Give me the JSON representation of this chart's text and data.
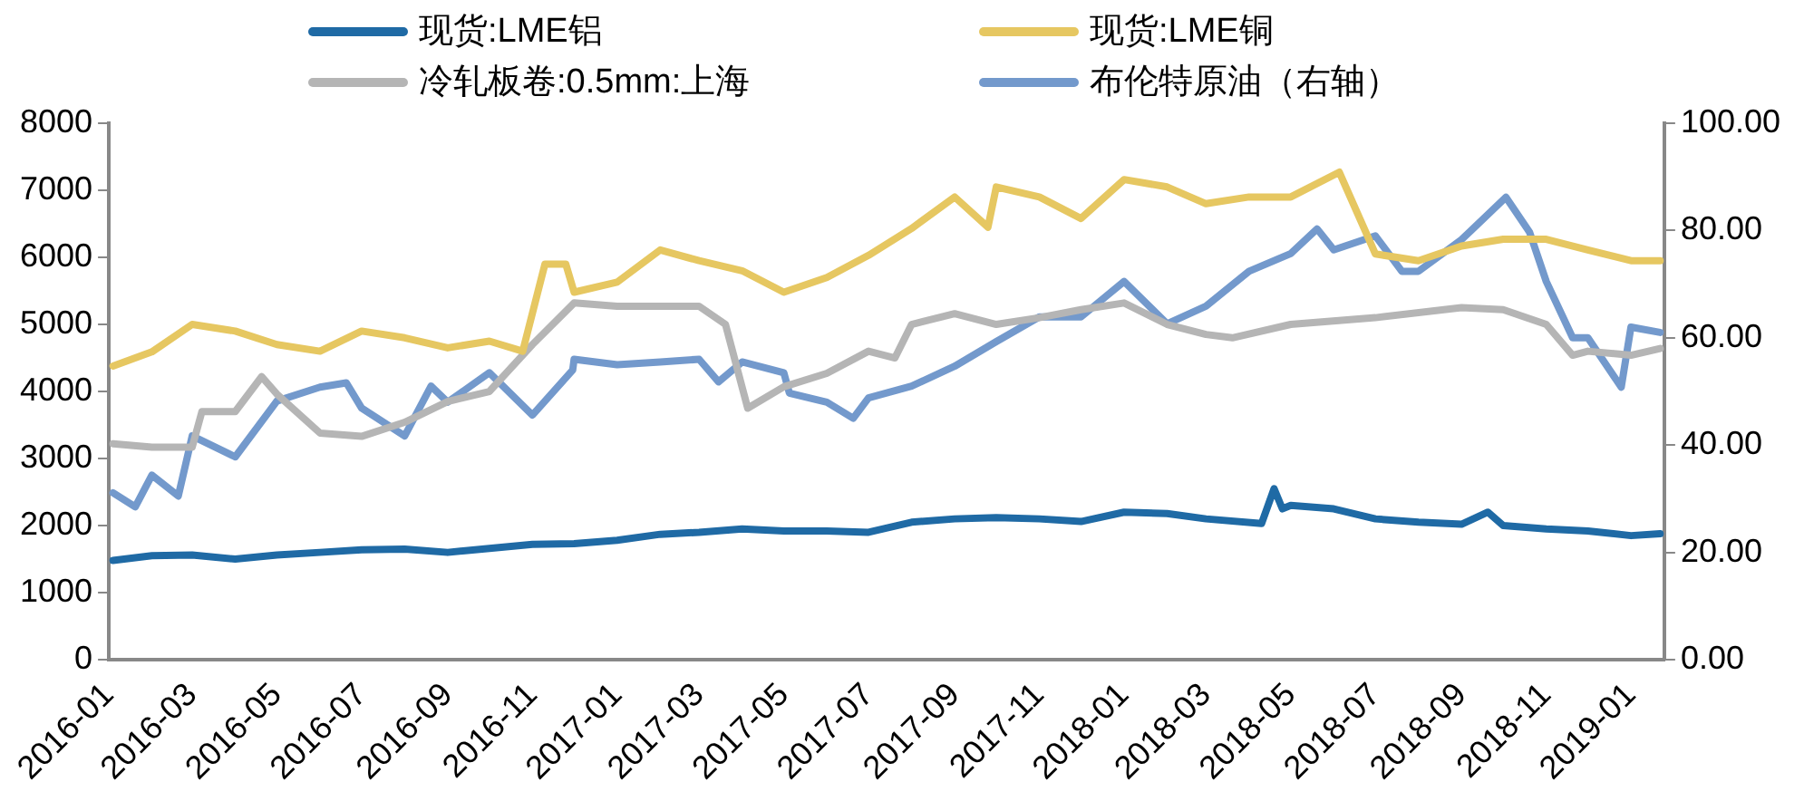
{
  "chart_data": {
    "type": "line",
    "legend": "top",
    "grid": false,
    "marker": "none",
    "line_style": "solid",
    "xlim": [
      "2016-01",
      "2019-01-25"
    ],
    "xticks": [
      "2016-01",
      "2016-03",
      "2016-05",
      "2016-07",
      "2016-09",
      "2016-11",
      "2017-01",
      "2017-03",
      "2017-05",
      "2017-07",
      "2017-09",
      "2017-11",
      "2018-01",
      "2018-03",
      "2018-05",
      "2018-07",
      "2018-09",
      "2018-11",
      "2019-01"
    ],
    "ylim": [
      0,
      8000
    ],
    "yticks": [
      0,
      1000,
      2000,
      3000,
      4000,
      5000,
      6000,
      7000,
      8000
    ],
    "y2lim": [
      0,
      100
    ],
    "y2ticks": [
      {
        "value": 0,
        "label": "0.00"
      },
      {
        "value": 20,
        "label": "20.00"
      },
      {
        "value": 40,
        "label": "40.00"
      },
      {
        "value": 60,
        "label": "60.00"
      },
      {
        "value": 80,
        "label": "80.00"
      },
      {
        "value": 100,
        "label": "100.00"
      }
    ],
    "series": [
      {
        "name": "现货:LME铝",
        "color": "#1f6aa5",
        "x": [
          "2016-01-04",
          "2016-02",
          "2016-03",
          "2016-04",
          "2016-05",
          "2016-06",
          "2016-07",
          "2016-08",
          "2016-09",
          "2016-10",
          "2016-11",
          "2016-12",
          "2017-01",
          "2017-02",
          "2017-03",
          "2017-04",
          "2017-05",
          "2017-06",
          "2017-07",
          "2017-08",
          "2017-09",
          "2017-10",
          "2017-11",
          "2017-12",
          "2018-01",
          "2018-02",
          "2018-03",
          "2018-04-10",
          "2018-04-19",
          "2018-04-25",
          "2018-05",
          "2018-06",
          "2018-07",
          "2018-08",
          "2018-09",
          "2018-09-20",
          "2018-10",
          "2018-11",
          "2018-12",
          "2019-01",
          "2019-01-22"
        ],
        "values": [
          1480,
          1550,
          1560,
          1500,
          1560,
          1600,
          1640,
          1650,
          1600,
          1660,
          1720,
          1730,
          1780,
          1870,
          1900,
          1950,
          1920,
          1920,
          1900,
          2050,
          2100,
          2120,
          2100,
          2060,
          2200,
          2180,
          2100,
          2030,
          2550,
          2250,
          2300,
          2250,
          2100,
          2050,
          2020,
          2200,
          2000,
          1950,
          1920,
          1850,
          1880
        ]
      },
      {
        "name": "现货:LME铜",
        "color": "#e6c761",
        "x": [
          "2016-01-04",
          "2016-02",
          "2016-03",
          "2016-04",
          "2016-05",
          "2016-06",
          "2016-07",
          "2016-08",
          "2016-09",
          "2016-10",
          "2016-10-25",
          "2016-11-10",
          "2016-11-25",
          "2016-12",
          "2017-01",
          "2017-02",
          "2017-03",
          "2017-04",
          "2017-05",
          "2017-06",
          "2017-07",
          "2017-08",
          "2017-09",
          "2017-09-25",
          "2017-10",
          "2017-11",
          "2017-12",
          "2018-01",
          "2018-02",
          "2018-03",
          "2018-04",
          "2018-05",
          "2018-06-05",
          "2018-07",
          "2018-08",
          "2018-09",
          "2018-10",
          "2018-11",
          "2018-12",
          "2019-01",
          "2019-01-22"
        ],
        "values": [
          4380,
          4590,
          5000,
          4900,
          4700,
          4600,
          4900,
          4800,
          4650,
          4750,
          4600,
          5900,
          5900,
          5480,
          5630,
          6110,
          5950,
          5800,
          5480,
          5700,
          6030,
          6430,
          6900,
          6450,
          7050,
          6900,
          6580,
          7160,
          7050,
          6800,
          6900,
          6900,
          7270,
          6050,
          5950,
          6170,
          6270,
          6270,
          6110,
          5950,
          5950
        ]
      },
      {
        "name": "冷轧板卷:0.5mm:上海",
        "color": "#b5b5b5",
        "x": [
          "2016-01-04",
          "2016-02",
          "2016-03",
          "2016-03-08",
          "2016-04",
          "2016-04-20",
          "2016-05",
          "2016-06",
          "2016-07",
          "2016-08",
          "2016-09",
          "2016-10",
          "2016-11",
          "2016-12",
          "2017-01",
          "2017-02",
          "2017-03",
          "2017-03-20",
          "2017-04-05",
          "2017-05",
          "2017-06",
          "2017-07",
          "2017-07-20",
          "2017-08",
          "2017-09",
          "2017-10",
          "2017-11",
          "2017-12",
          "2018-01",
          "2018-02",
          "2018-03",
          "2018-03-20",
          "2018-05",
          "2018-07",
          "2018-09",
          "2018-10",
          "2018-11",
          "2018-11-20",
          "2018-12",
          "2019-01",
          "2019-01-22"
        ],
        "values": [
          3220,
          3170,
          3170,
          3700,
          3700,
          4220,
          3960,
          3380,
          3330,
          3540,
          3850,
          4000,
          4700,
          5320,
          5270,
          5270,
          5270,
          5000,
          3750,
          4070,
          4270,
          4600,
          4500,
          5000,
          5160,
          5000,
          5100,
          5220,
          5320,
          5000,
          4850,
          4800,
          5000,
          5100,
          5250,
          5220,
          5000,
          4540,
          4600,
          4540,
          4640
        ]
      },
      {
        "name": "布伦特原油（右轴）",
        "color": "#7399cc",
        "axis": "y2",
        "x": [
          "2016-01-04",
          "2016-01-20",
          "2016-02",
          "2016-02-20",
          "2016-03",
          "2016-04",
          "2016-05",
          "2016-06",
          "2016-06-20",
          "2016-07",
          "2016-08",
          "2016-08-20",
          "2016-09",
          "2016-10",
          "2016-11",
          "2016-11-30",
          "2016-12",
          "2017-01",
          "2017-02",
          "2017-03",
          "2017-03-15",
          "2017-04",
          "2017-05",
          "2017-05-05",
          "2017-06",
          "2017-06-20",
          "2017-07",
          "2017-08",
          "2017-09",
          "2017-10",
          "2017-11",
          "2017-12",
          "2018-01",
          "2018-02",
          "2018-03",
          "2018-04",
          "2018-05",
          "2018-05-20",
          "2018-06",
          "2018-07",
          "2018-07-20",
          "2018-08",
          "2018-09",
          "2018-10-03",
          "2018-10-20",
          "2018-11",
          "2018-11-20",
          "2018-12",
          "2018-12-25",
          "2019-01",
          "2019-01-22"
        ],
        "values": [
          31.1,
          28.5,
          34.4,
          30.5,
          41.7,
          37.8,
          48.2,
          50.8,
          51.6,
          46.9,
          41.7,
          51,
          48,
          53.5,
          45.6,
          54,
          56,
          55,
          55.5,
          56,
          51.8,
          55.5,
          53.5,
          49.7,
          48,
          45,
          48.8,
          51,
          54.7,
          59.3,
          63.9,
          63.9,
          70.5,
          62.6,
          65.9,
          72.4,
          75.7,
          80.3,
          76.4,
          79,
          72.4,
          72.4,
          78.3,
          86.2,
          79.7,
          70.5,
          60,
          60,
          50.8,
          62,
          61
        ]
      }
    ]
  }
}
